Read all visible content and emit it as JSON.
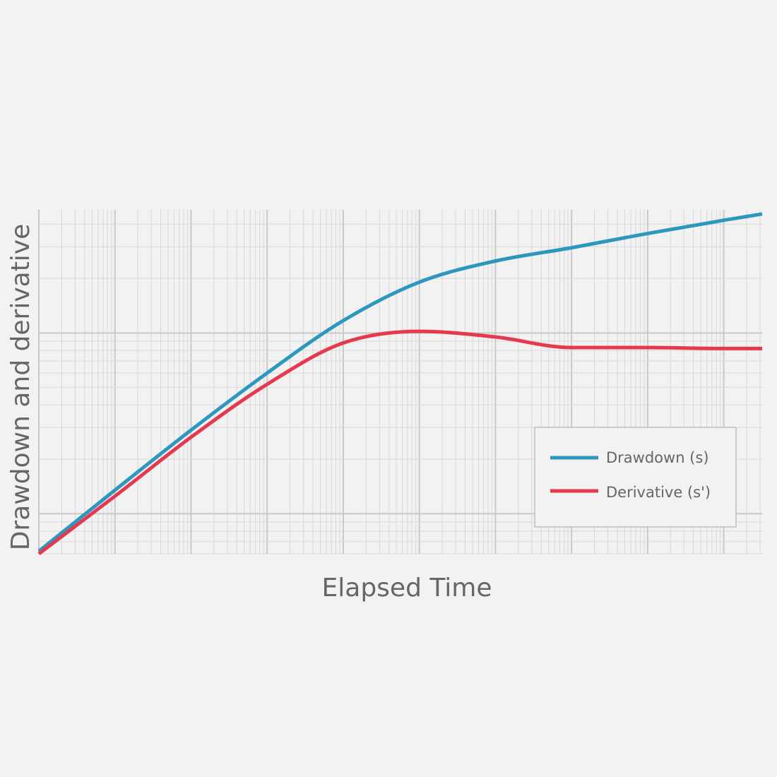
{
  "chart_data": {
    "type": "line",
    "title": "",
    "xlabel": "Elapsed Time",
    "ylabel": "Drawdown and derivative",
    "x_scale": "log",
    "y_scale": "log",
    "xlim": [
      1,
      3200000000
    ],
    "ylim": [
      0.06,
      4.8
    ],
    "grid": true,
    "tick_labels_shown": false,
    "legend_position": "bottom-right",
    "x": [
      1,
      10,
      100,
      1000,
      10000,
      100000,
      1000000,
      10000000,
      100000000,
      1000000000,
      3200000000
    ],
    "series": [
      {
        "name": "Drawdown (s)",
        "color": "#2e97bd",
        "values": [
          0.062,
          0.135,
          0.29,
          0.6,
          1.17,
          1.91,
          2.5,
          2.96,
          3.55,
          4.2,
          4.55
        ]
      },
      {
        "name": "Derivative (s')",
        "color": "#e5394f",
        "values": [
          0.06,
          0.125,
          0.265,
          0.52,
          0.88,
          1.02,
          0.95,
          0.83,
          0.83,
          0.82,
          0.82
        ]
      }
    ]
  }
}
